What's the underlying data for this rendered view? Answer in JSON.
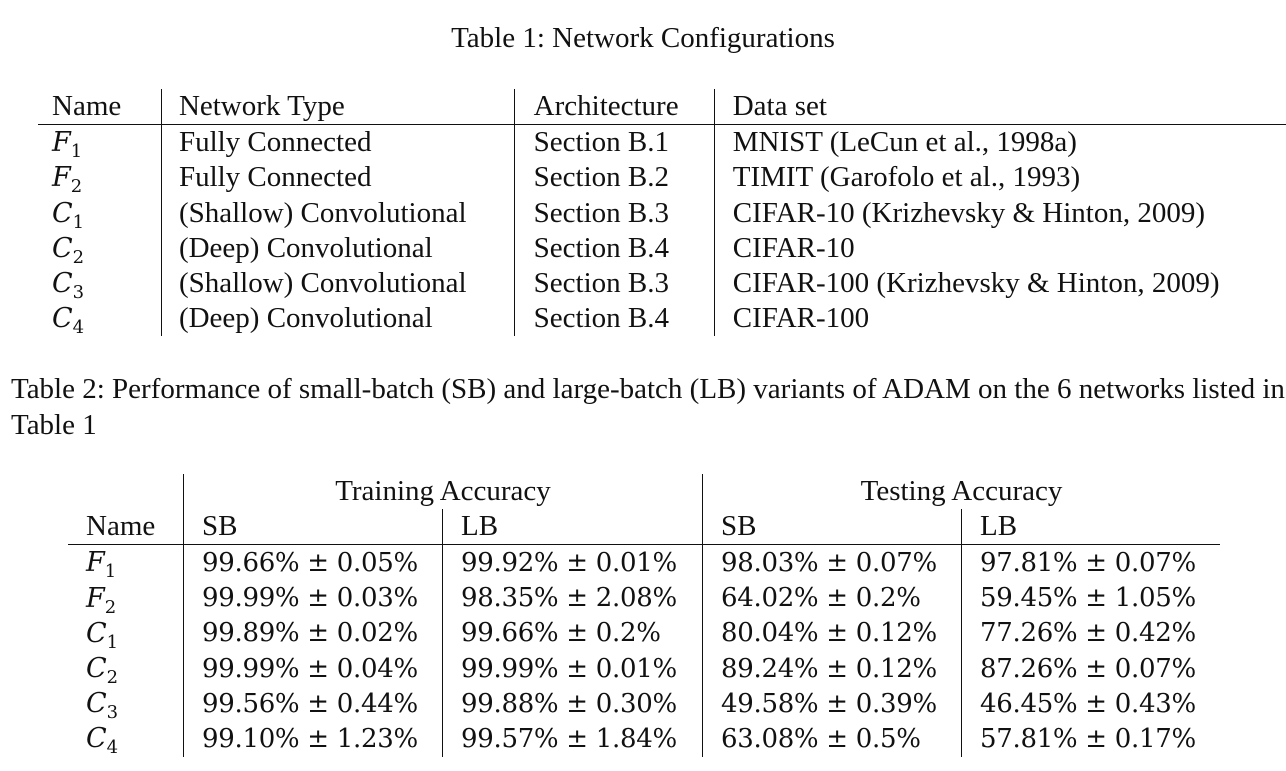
{
  "table1": {
    "caption": "Table 1: Network Configurations",
    "headers": [
      "Name",
      "Network Type",
      "Architecture",
      "Data set"
    ],
    "rows": [
      {
        "name_base": "F",
        "name_sub": "1",
        "network_type": "Fully Connected",
        "architecture": "Section B.1",
        "data_set": "MNIST (LeCun et al., 1998a)"
      },
      {
        "name_base": "F",
        "name_sub": "2",
        "network_type": "Fully Connected",
        "architecture": "Section B.2",
        "data_set": "TIMIT (Garofolo et al., 1993)"
      },
      {
        "name_base": "C",
        "name_sub": "1",
        "network_type": "(Shallow) Convolutional",
        "architecture": "Section B.3",
        "data_set": "CIFAR-10 (Krizhevsky & Hinton, 2009)"
      },
      {
        "name_base": "C",
        "name_sub": "2",
        "network_type": "(Deep) Convolutional",
        "architecture": "Section B.4",
        "data_set": "CIFAR-10"
      },
      {
        "name_base": "C",
        "name_sub": "3",
        "network_type": "(Shallow) Convolutional",
        "architecture": "Section B.3",
        "data_set": "CIFAR-100 (Krizhevsky & Hinton, 2009)"
      },
      {
        "name_base": "C",
        "name_sub": "4",
        "network_type": "(Deep) Convolutional",
        "architecture": "Section B.4",
        "data_set": "CIFAR-100"
      }
    ]
  },
  "table2": {
    "caption": "Table 2: Performance of small-batch (SB) and large-batch (LB) variants of ADAM on the 6 networks listed in Table 1",
    "group_headers": [
      "Training Accuracy",
      "Testing Accuracy"
    ],
    "sub_headers": [
      "Name",
      "SB",
      "LB",
      "SB",
      "LB"
    ],
    "rows": [
      {
        "name_base": "F",
        "name_sub": "1",
        "train_sb": "99.66% ± 0.05%",
        "train_lb": "99.92% ± 0.01%",
        "test_sb": "98.03% ± 0.07%",
        "test_lb": "97.81% ± 0.07%"
      },
      {
        "name_base": "F",
        "name_sub": "2",
        "train_sb": "99.99% ± 0.03%",
        "train_lb": "98.35% ± 2.08%",
        "test_sb": "64.02% ± 0.2%",
        "test_lb": "59.45% ± 1.05%"
      },
      {
        "name_base": "C",
        "name_sub": "1",
        "train_sb": "99.89% ± 0.02%",
        "train_lb": "99.66% ± 0.2%",
        "test_sb": "80.04% ± 0.12%",
        "test_lb": "77.26% ± 0.42%"
      },
      {
        "name_base": "C",
        "name_sub": "2",
        "train_sb": "99.99% ± 0.04%",
        "train_lb": "99.99% ± 0.01%",
        "test_sb": "89.24% ± 0.12%",
        "test_lb": "87.26% ± 0.07%"
      },
      {
        "name_base": "C",
        "name_sub": "3",
        "train_sb": "99.56% ± 0.44%",
        "train_lb": "99.88% ± 0.30%",
        "test_sb": "49.58% ± 0.39%",
        "test_lb": "46.45% ± 0.43%"
      },
      {
        "name_base": "C",
        "name_sub": "4",
        "train_sb": "99.10% ± 1.23%",
        "train_lb": "99.57% ± 1.84%",
        "test_sb": "63.08% ± 0.5%",
        "test_lb": "57.81% ± 0.17%"
      }
    ]
  }
}
